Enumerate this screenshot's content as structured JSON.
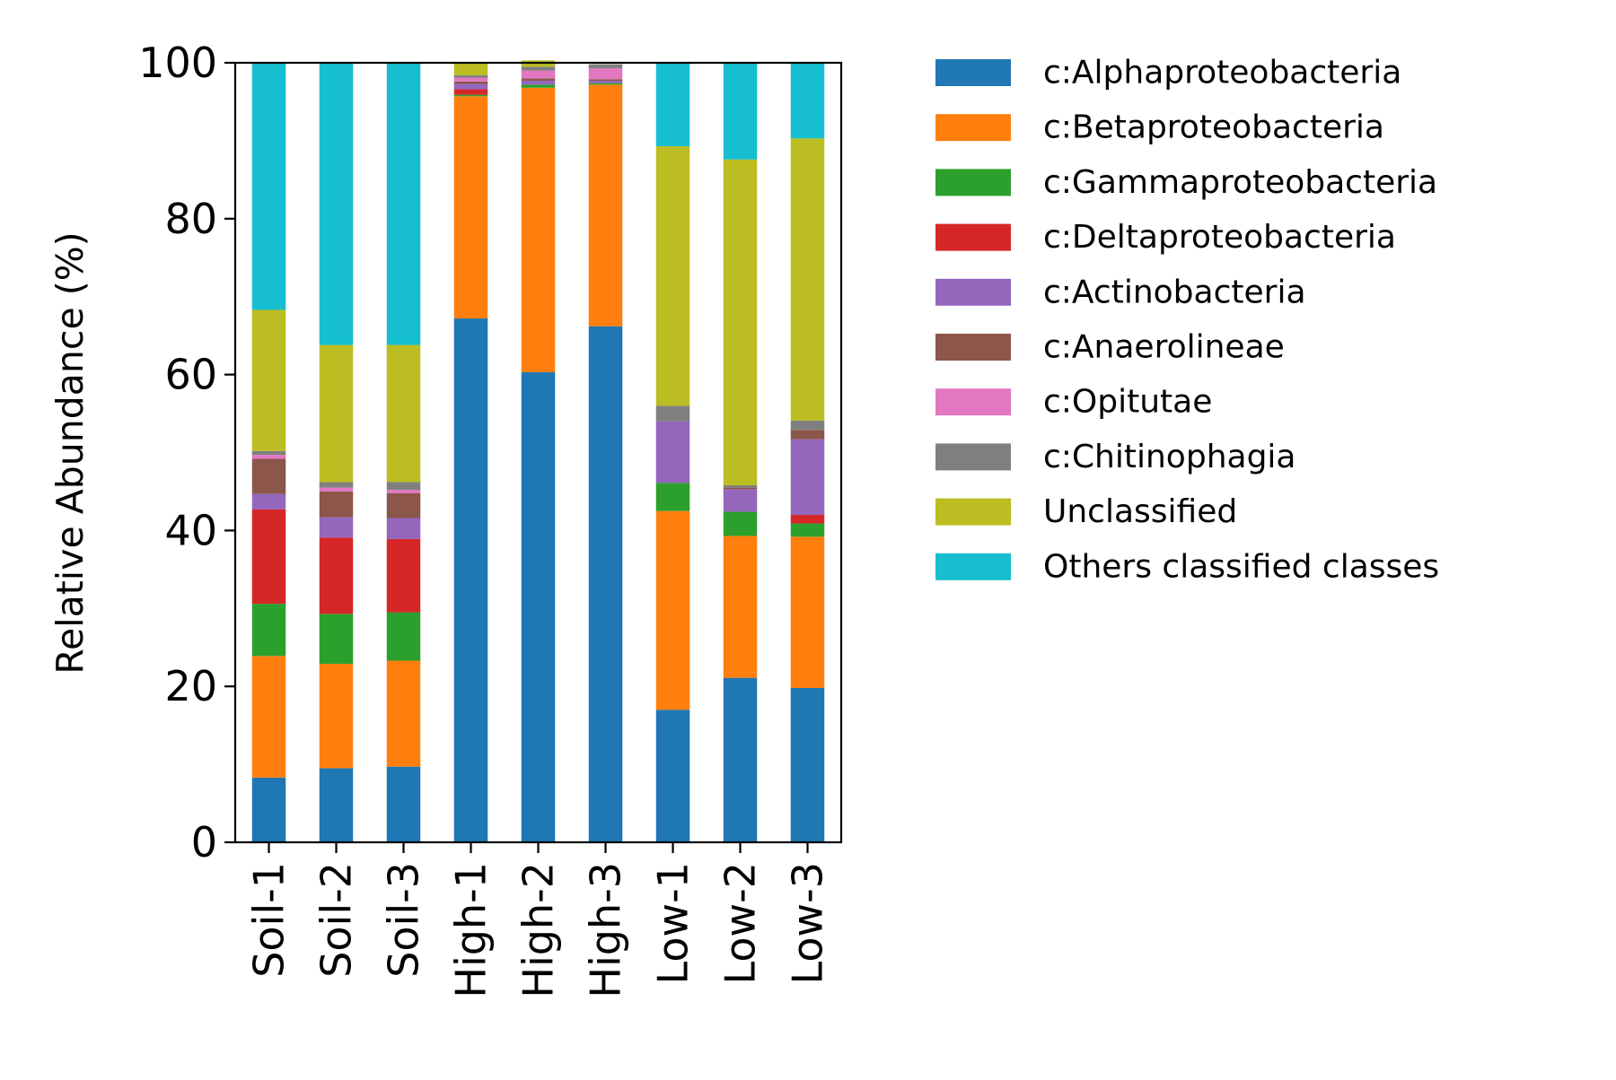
{
  "chart_data": {
    "type": "bar",
    "stacked": true,
    "title": "",
    "xlabel": "",
    "ylabel": "Relative Abundance (%)",
    "ylim": [
      0,
      100
    ],
    "yticks": [
      "0",
      "20",
      "40",
      "60",
      "80",
      "100"
    ],
    "grid": false,
    "legend_position": "right, outside plot area",
    "categories": [
      "Soil-1",
      "Soil-2",
      "Soil-3",
      "High-1",
      "High-2",
      "High-3",
      "Low-1",
      "Low-2",
      "Low-3"
    ],
    "series": [
      {
        "name": "c:Alphaproteobacteria",
        "color": "#1f77b4",
        "values": [
          8.3,
          9.5,
          9.7,
          67.2,
          60.3,
          66.2,
          17.0,
          21.1,
          19.8
        ]
      },
      {
        "name": "c:Betaproteobacteria",
        "color": "#ff7f0e",
        "values": [
          15.6,
          13.4,
          13.6,
          28.5,
          36.5,
          31.0,
          25.5,
          18.2,
          19.4
        ]
      },
      {
        "name": "c:Gammaproteobacteria",
        "color": "#2ca02c",
        "values": [
          6.7,
          6.4,
          6.2,
          0.2,
          0.4,
          0.2,
          3.6,
          3.1,
          1.7
        ]
      },
      {
        "name": "c:Deltaproteobacteria",
        "color": "#d62728",
        "values": [
          12.1,
          9.8,
          9.4,
          0.7,
          0.0,
          0.0,
          0.0,
          0.0,
          1.1
        ]
      },
      {
        "name": "c:Actinobacteria",
        "color": "#9467bd",
        "values": [
          2.0,
          2.6,
          2.7,
          0.7,
          0.5,
          0.3,
          7.9,
          2.9,
          9.7
        ]
      },
      {
        "name": "c:Anaerolineae",
        "color": "#8c564b",
        "values": [
          4.5,
          3.3,
          3.2,
          0.3,
          0.3,
          0.2,
          0.0,
          0.2,
          1.2
        ]
      },
      {
        "name": "c:Opitutae",
        "color": "#e377c2",
        "values": [
          0.5,
          0.5,
          0.4,
          0.5,
          1.0,
          1.4,
          0.0,
          0.0,
          0.0
        ]
      },
      {
        "name": "c:Chitinophagia",
        "color": "#7f7f7f",
        "values": [
          0.5,
          0.7,
          1.0,
          0.3,
          0.5,
          0.5,
          2.0,
          0.3,
          1.2
        ]
      },
      {
        "name": "Unclassified",
        "color": "#bcbd22",
        "values": [
          18.1,
          17.6,
          17.6,
          1.6,
          0.8,
          0.0,
          33.3,
          41.8,
          36.2
        ]
      },
      {
        "name": "Others classified classes",
        "color": "#17becf",
        "values": [
          31.7,
          36.2,
          36.2,
          0.0,
          0.0,
          0.0,
          10.7,
          12.5,
          9.7
        ]
      }
    ]
  }
}
